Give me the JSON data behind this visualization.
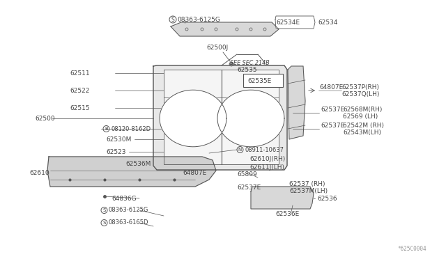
{
  "bg_color": "#ffffff",
  "watermark": "*625C0004",
  "line_color": "#555555",
  "text_color": "#444444",
  "labels": {
    "top_s": "S08363-6125G",
    "top_e": "62534E",
    "top_num": "62534",
    "j500": "62500J",
    "sec": "SEE SEC.214B",
    "n535": "62535",
    "n535e": "62535E",
    "n511": "62511",
    "n522": "62522",
    "n515": "62515",
    "n500": "62500",
    "b8120": "B08120-8162D",
    "n530m": "62530M",
    "n523": "62523",
    "n536m": "62536M",
    "n4807a": "64807E",
    "n4807b": "64807E",
    "n537p": "62537P(RH)",
    "n537q": "62537Q(LH)",
    "n537e1": "62537E",
    "n568m": "62568M(RH)",
    "n569": "62569 (LH)",
    "n537e2": "62537E",
    "n542m": "62542M (RH)",
    "n543m": "62543M(LH)",
    "n5809": "65809",
    "nN": "N08911-10637",
    "n610j": "62610J(RH)",
    "n611j": "62611J(LH)",
    "n610": "62610",
    "n537e3": "62537E",
    "n537rh": "62537 (RH)",
    "n537lh": "62537M(LH)",
    "n536e": "62536E",
    "n536": "62536",
    "n836g": "64836G",
    "bot_s1": "S08363-6125G",
    "bot_s2": "S08363-6165D"
  }
}
